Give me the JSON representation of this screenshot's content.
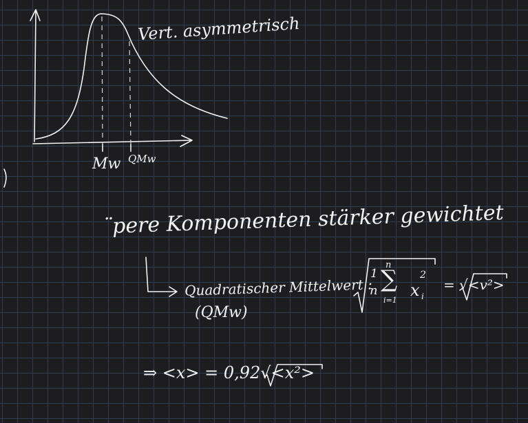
{
  "sketch": {
    "annotation": "Vert. asymmetrisch",
    "marker_mw": "Mw",
    "marker_qmw": "QMw"
  },
  "notes": {
    "line1": "¨pere Komponenten stärker gewichtet",
    "line2_prefix": "Quadratischer Mittelwert :",
    "frac_num": "1",
    "frac_den": "n",
    "sum_upper": "n",
    "sum_lower": "i=1",
    "sum_term": "x",
    "sum_term_sub": "i",
    "sum_term_sup": "2",
    "rhs": "= √<v²>",
    "abbrev": "(QMw)",
    "line3": "⇒ <x> = 0,92√<x²>"
  }
}
